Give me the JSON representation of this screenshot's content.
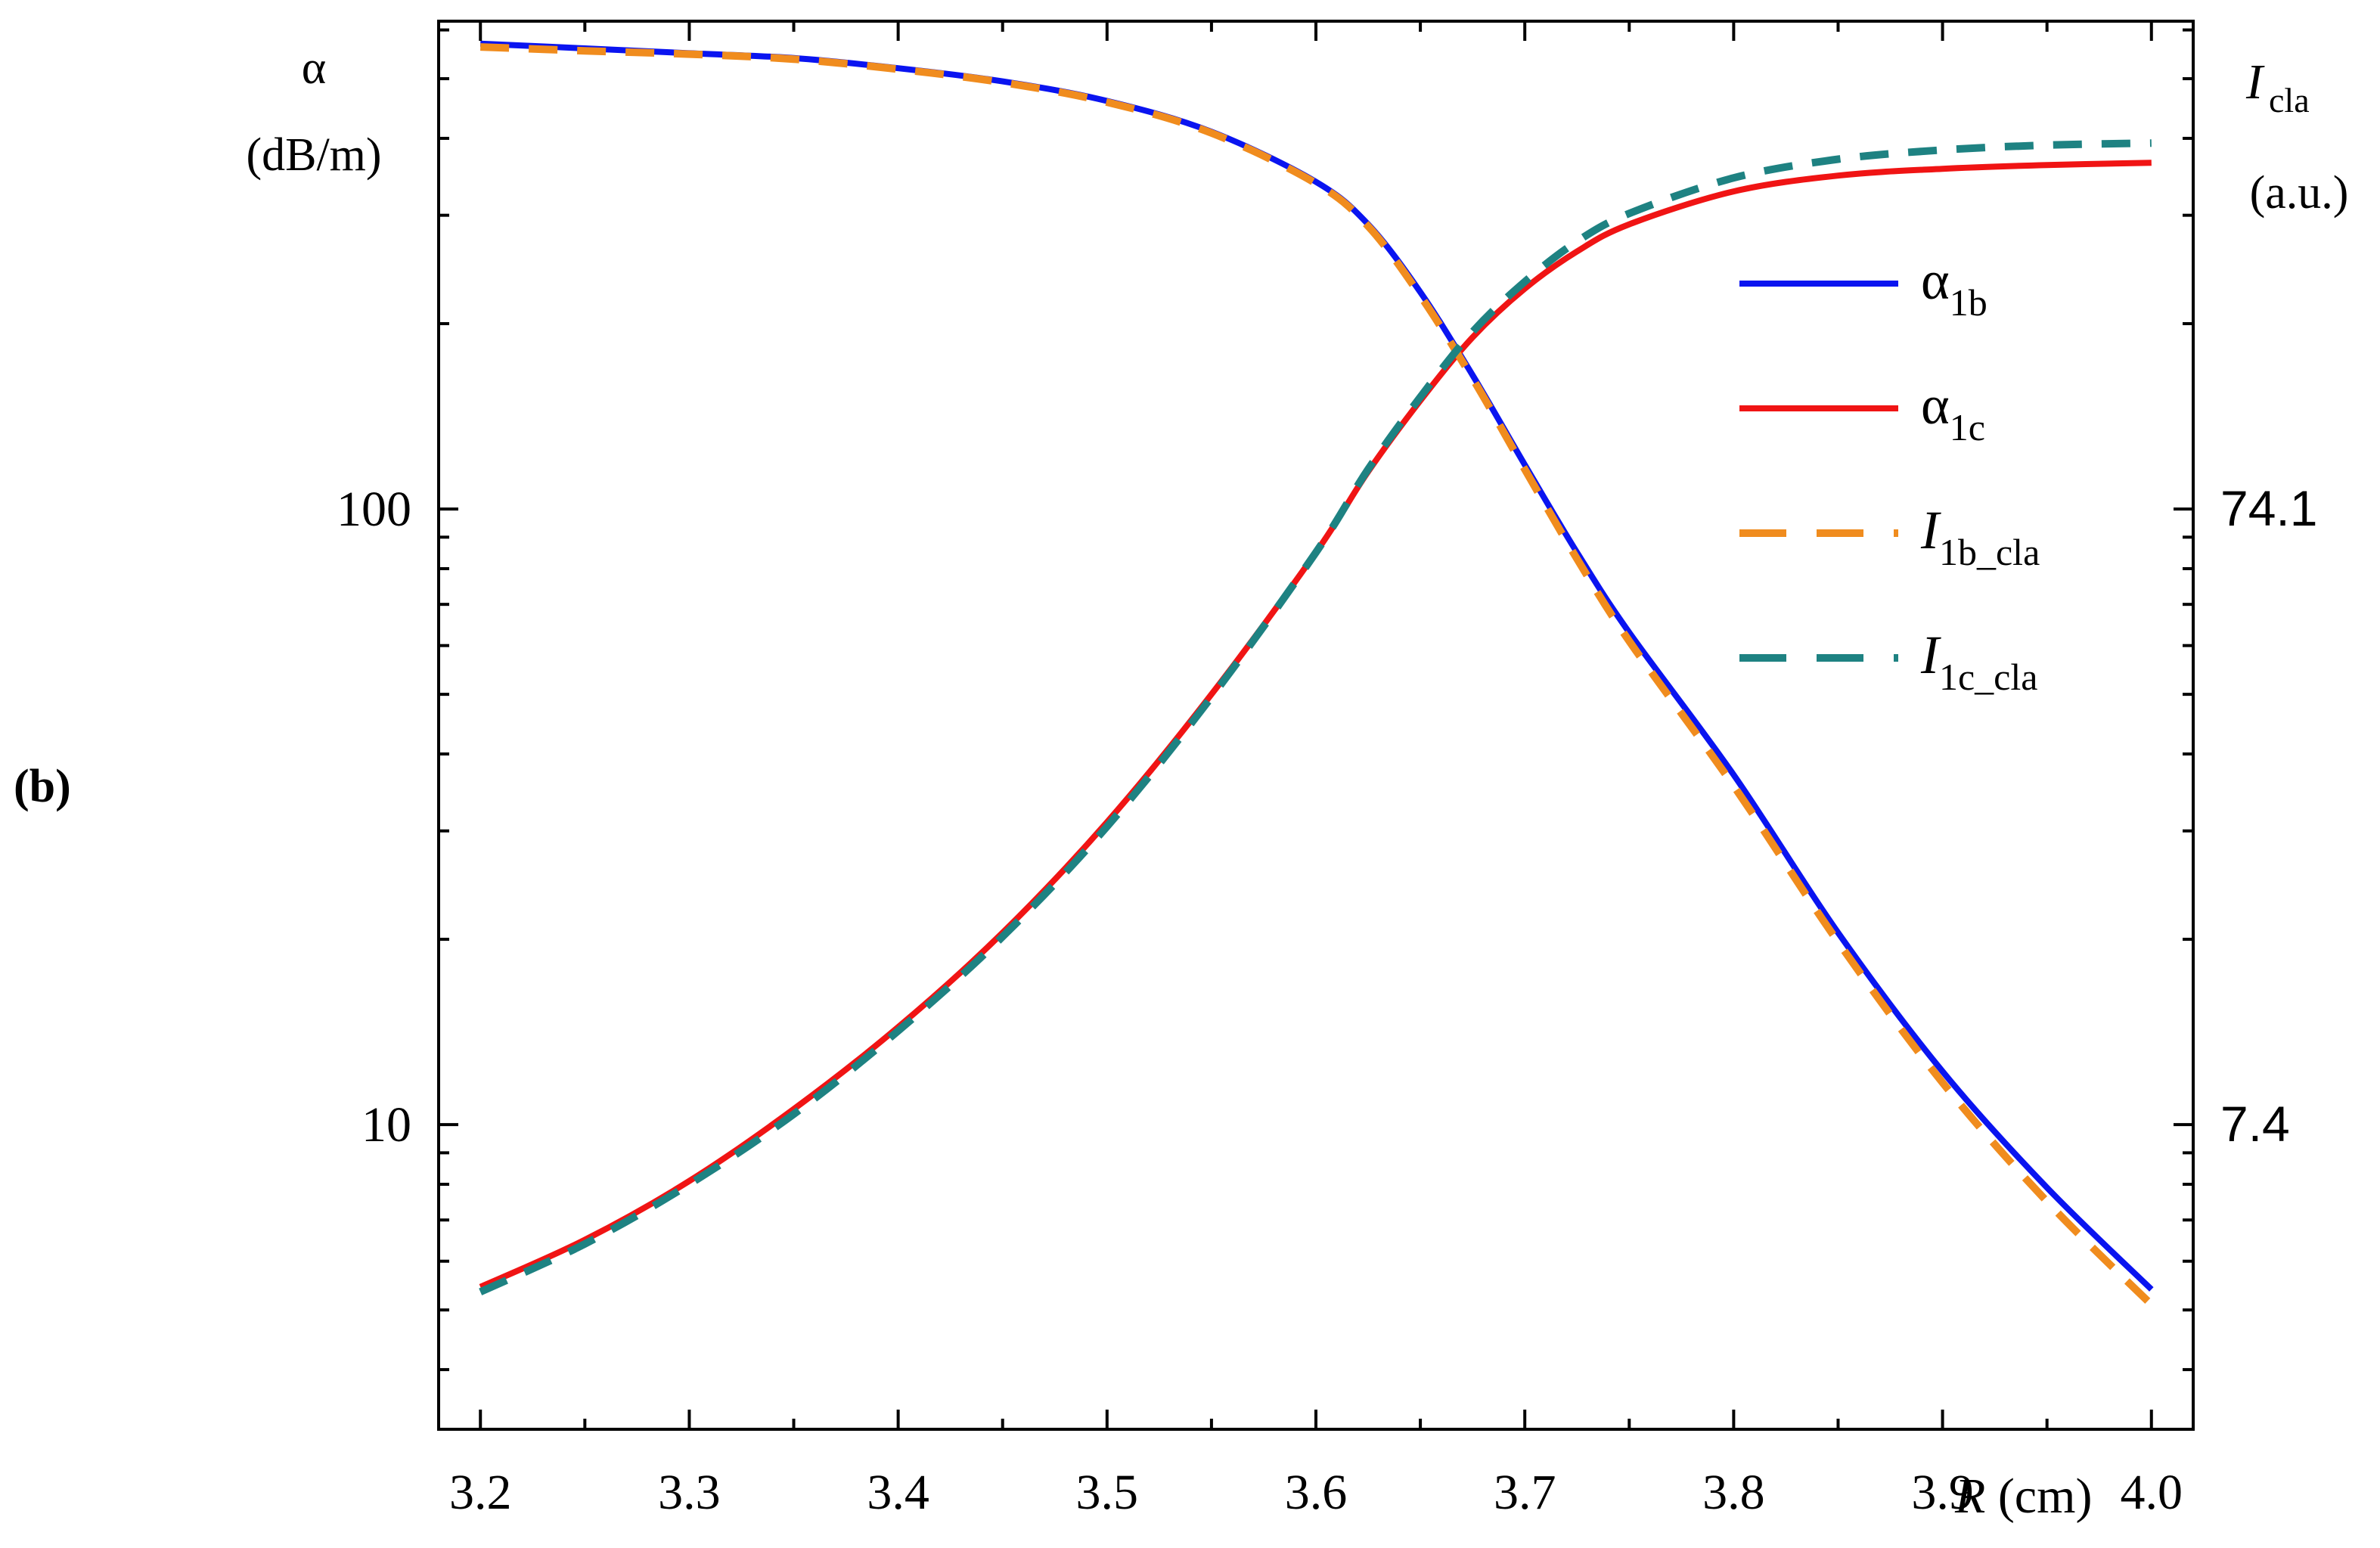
{
  "panel_label": "(b)",
  "chart_data": {
    "type": "line",
    "title": "",
    "xlabel": {
      "italic": "R",
      "rest": " (cm)"
    },
    "x_ticks": [
      "3.2",
      "3.3",
      "3.4",
      "3.5",
      "3.6",
      "3.7",
      "3.8",
      "3.9",
      "4.0"
    ],
    "xlim": [
      3.18,
      4.02
    ],
    "left_axis": {
      "label_line1": "α",
      "label_line2": "(dB/m)",
      "scale": "log",
      "ticks": [
        "10",
        "100"
      ],
      "ylim": [
        3.2,
        620
      ]
    },
    "right_axis": {
      "label_main": "I",
      "label_sub": "cla",
      "label_line2": "(a.u.)",
      "scale": "log",
      "ticks": [
        "7.4",
        "74.1"
      ]
    },
    "legend": {
      "position": "top-right",
      "entries": [
        {
          "base": "α",
          "sub": "1b",
          "italic": false,
          "color": "#0a14f0",
          "dashed": false
        },
        {
          "base": "α",
          "sub": "1c",
          "italic": false,
          "color": "#f01414",
          "dashed": false
        },
        {
          "base": "I",
          "sub": "1b_cla",
          "italic": true,
          "color": "#f08c1e",
          "dashed": true
        },
        {
          "base": "I",
          "sub": "1c_cla",
          "italic": true,
          "color": "#1e8282",
          "dashed": true
        }
      ]
    },
    "x": [
      3.2,
      3.25,
      3.3,
      3.35,
      3.4,
      3.45,
      3.5,
      3.55,
      3.6,
      3.625,
      3.65,
      3.675,
      3.7,
      3.725,
      3.75,
      3.8,
      3.85,
      3.9,
      3.95,
      4.0
    ],
    "series": [
      {
        "name": "α1b",
        "color": "#0a14f0",
        "dashed": false,
        "values": [
          570,
          560,
          550,
          540,
          520,
          495,
          460,
          410,
          340,
          290,
          225,
          165,
          118,
          85,
          63,
          37,
          20.5,
          12.2,
          7.9,
          5.4
        ]
      },
      {
        "name": "α1c",
        "color": "#f01414",
        "dashed": false,
        "values": [
          5.45,
          6.5,
          8.1,
          10.6,
          14.4,
          20.5,
          31,
          50,
          85,
          115,
          150,
          190,
          228,
          262,
          290,
          328,
          348,
          357,
          362,
          365
        ]
      },
      {
        "name": "I1b_cla",
        "color": "#f08c1e",
        "dashed": true,
        "values": [
          563,
          555,
          548,
          538,
          518,
          493,
          458,
          408,
          338,
          288,
          222,
          163,
          116,
          83,
          61,
          35.5,
          19.8,
          11.7,
          7.5,
          5.1
        ]
      },
      {
        "name": "I1c_cla",
        "color": "#1e8282",
        "dashed": true,
        "values": [
          5.35,
          6.4,
          8.0,
          10.4,
          14.2,
          20.2,
          30.5,
          49.5,
          85,
          116,
          152,
          194,
          234,
          272,
          302,
          345,
          370,
          383,
          390,
          393
        ]
      }
    ]
  }
}
